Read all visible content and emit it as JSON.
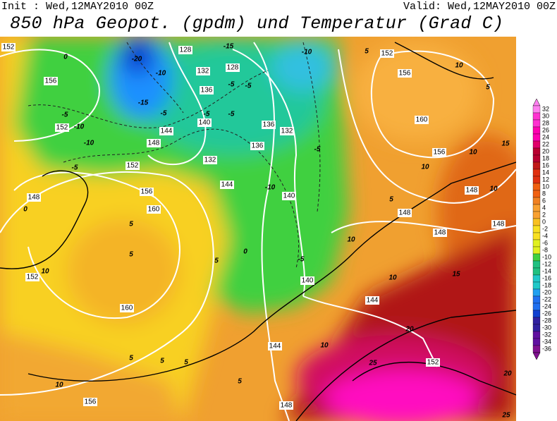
{
  "header": {
    "init": "Init : Wed,12MAY2010 00Z",
    "valid": "Valid: Wed,12MAY2010 00Z",
    "title": "850 hPa Geopot. (gpdm) und Temperatur (Grad C)"
  },
  "map": {
    "height_labels": [
      152,
      156,
      152,
      148,
      152,
      156,
      160,
      148,
      152,
      160,
      156,
      128,
      132,
      136,
      140,
      144,
      132,
      144,
      128,
      132,
      136,
      136,
      140,
      140,
      144,
      144,
      148,
      152,
      156,
      160,
      156,
      148,
      148,
      148,
      148,
      152
    ],
    "temp_labels": [
      -20,
      -10,
      -15,
      -10,
      -5,
      -5,
      -15,
      -5,
      -5,
      -5,
      -5,
      -10,
      -10,
      -5,
      0,
      -10,
      -5,
      0,
      5,
      5,
      10,
      0,
      5,
      -5,
      10,
      5,
      5,
      10,
      5,
      10,
      10,
      10,
      10,
      15,
      10,
      20,
      25,
      5,
      5,
      5,
      10,
      5,
      25,
      20,
      15
    ]
  },
  "colorbar": {
    "labels": [
      32,
      30,
      28,
      26,
      24,
      22,
      20,
      18,
      16,
      14,
      12,
      10,
      8,
      6,
      4,
      2,
      0,
      -2,
      -4,
      -6,
      -8,
      -10,
      -12,
      -14,
      -16,
      -18,
      -20,
      -22,
      -24,
      -26,
      -28,
      -30,
      -32,
      -34,
      -36
    ]
  }
}
